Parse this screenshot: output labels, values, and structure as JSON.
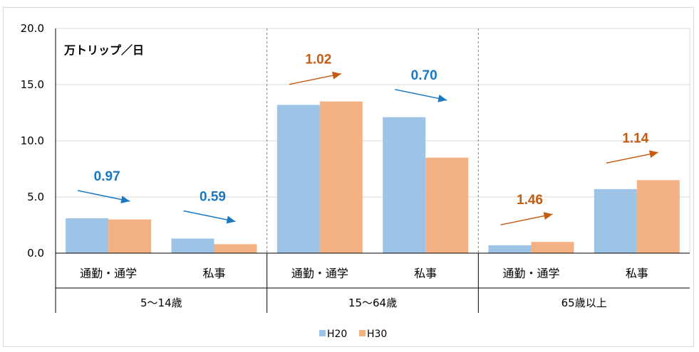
{
  "chart_data": {
    "type": "bar",
    "unit_label": "万トリップ／日",
    "y_ticks": [
      "20.0",
      "15.0",
      "10.0",
      "5.0",
      "0.0"
    ],
    "ylim": [
      0,
      20
    ],
    "grid": true,
    "legend_position": "bottom",
    "groups": [
      {
        "label": "5～14歳",
        "categories": [
          "通勤・通学",
          "私事"
        ]
      },
      {
        "label": "15～64歳",
        "categories": [
          "通勤・通学",
          "私事"
        ]
      },
      {
        "label": "65歳以上",
        "categories": [
          "通勤・通学",
          "私事"
        ]
      }
    ],
    "categories": [
      "通勤・通学",
      "私事",
      "通勤・通学",
      "私事",
      "通勤・通学",
      "私事"
    ],
    "series": [
      {
        "name": "H20",
        "color": "#9dc3e6",
        "values": [
          3.1,
          1.3,
          13.2,
          12.1,
          0.7,
          5.7
        ]
      },
      {
        "name": "H30",
        "color": "#f4b183",
        "values": [
          3.0,
          0.8,
          13.5,
          8.5,
          1.0,
          6.5
        ]
      }
    ],
    "annotations": [
      {
        "category_index": 0,
        "text": "0.97",
        "direction": "down",
        "color": "#1a78c2"
      },
      {
        "category_index": 1,
        "text": "0.59",
        "direction": "down",
        "color": "#1a78c2"
      },
      {
        "category_index": 2,
        "text": "1.02",
        "direction": "up",
        "color": "#c55a11"
      },
      {
        "category_index": 3,
        "text": "0.70",
        "direction": "down",
        "color": "#1a78c2"
      },
      {
        "category_index": 4,
        "text": "1.46",
        "direction": "up",
        "color": "#c55a11"
      },
      {
        "category_index": 5,
        "text": "1.14",
        "direction": "up",
        "color": "#c55a11"
      }
    ]
  }
}
